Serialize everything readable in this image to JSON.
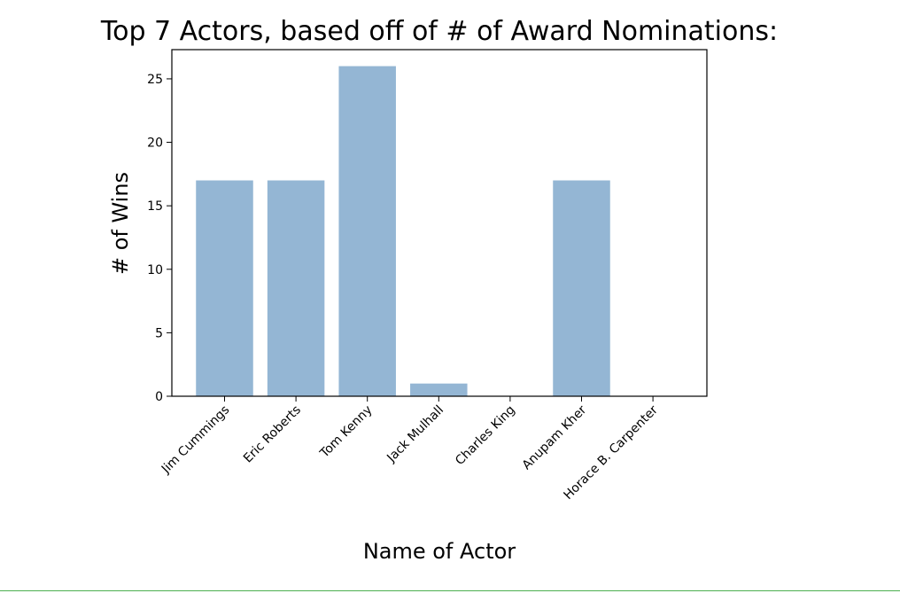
{
  "chart_data": {
    "type": "bar",
    "title": "Top 7 Actors, based off of # of Award Nominations:",
    "xlabel": "Name of Actor",
    "ylabel": "# of Wins",
    "categories": [
      "Jim Cummings",
      "Eric Roberts",
      "Tom Kenny",
      "Jack Mulhall",
      "Charles King",
      "Anupam Kher",
      "Horace B. Carpenter"
    ],
    "values": [
      17,
      17,
      26,
      1,
      0,
      17,
      0
    ],
    "yticks": [
      "0",
      "5",
      "10",
      "15",
      "20",
      "25"
    ],
    "ylim": [
      0,
      27.3
    ],
    "grid": false,
    "bar_color": "#94b6d4"
  }
}
